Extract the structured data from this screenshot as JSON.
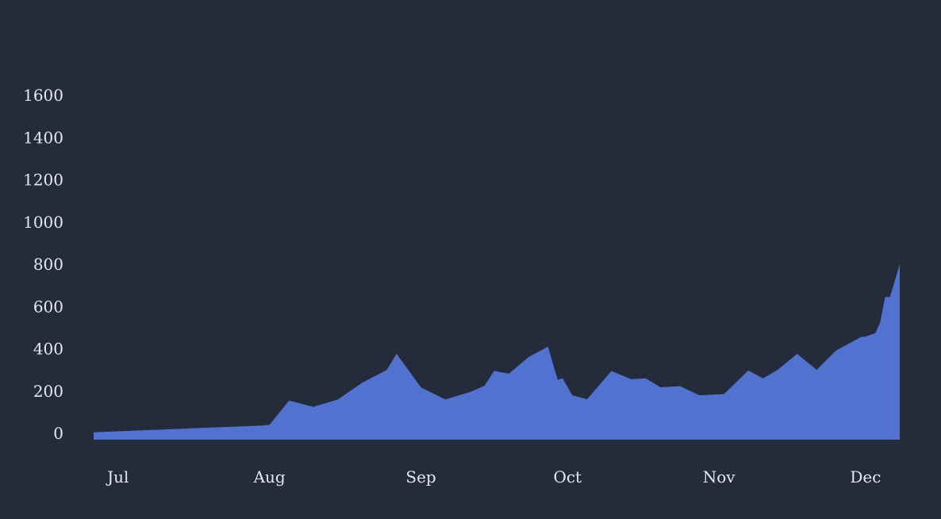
{
  "chart_data": {
    "type": "area",
    "title": "",
    "xlabel": "",
    "ylabel": "",
    "x_ticks": [
      "Jul",
      "Aug",
      "Sep",
      "Oct",
      "Nov",
      "Dec"
    ],
    "y_ticks": [
      0,
      200,
      400,
      600,
      800,
      1000,
      1200,
      1400,
      1600
    ],
    "ylim": [
      -30,
      1650
    ],
    "xlim": [
      "2023-06-26",
      "2023-12-08"
    ],
    "grid": false,
    "legend": "none",
    "colors": {
      "fill": "#5272d0",
      "background": "#242c3b",
      "text": "#e6e8ee"
    },
    "series": [
      {
        "x": [
          "2023-06-26",
          "2023-07-30",
          "2023-08-01",
          "2023-08-05",
          "2023-08-10",
          "2023-08-15",
          "2023-08-20",
          "2023-08-25",
          "2023-08-27",
          "2023-09-01",
          "2023-09-06",
          "2023-09-11",
          "2023-09-14",
          "2023-09-16",
          "2023-09-19",
          "2023-09-23",
          "2023-09-27",
          "2023-09-28",
          "2023-09-29",
          "2023-09-30",
          "2023-10-02",
          "2023-10-05",
          "2023-10-10",
          "2023-10-14",
          "2023-10-17",
          "2023-10-20",
          "2023-10-24",
          "2023-10-28",
          "2023-11-02",
          "2023-11-07",
          "2023-11-10",
          "2023-11-13",
          "2023-11-17",
          "2023-11-21",
          "2023-11-24",
          "2023-11-25",
          "2023-11-30",
          "2023-12-01",
          "2023-12-03",
          "2023-12-04",
          "2023-12-05",
          "2023-12-06",
          "2023-12-08"
        ],
        "y": [
          5,
          36,
          40,
          155,
          125,
          160,
          240,
          300,
          376,
          217,
          160,
          195,
          225,
          296,
          282,
          360,
          410,
          330,
          253,
          260,
          180,
          161,
          295,
          256,
          260,
          218,
          223,
          180,
          185,
          297,
          260,
          300,
          376,
          300,
          370,
          392,
          455,
          458,
          474,
          525,
          645,
          645,
          800
        ]
      }
    ]
  }
}
